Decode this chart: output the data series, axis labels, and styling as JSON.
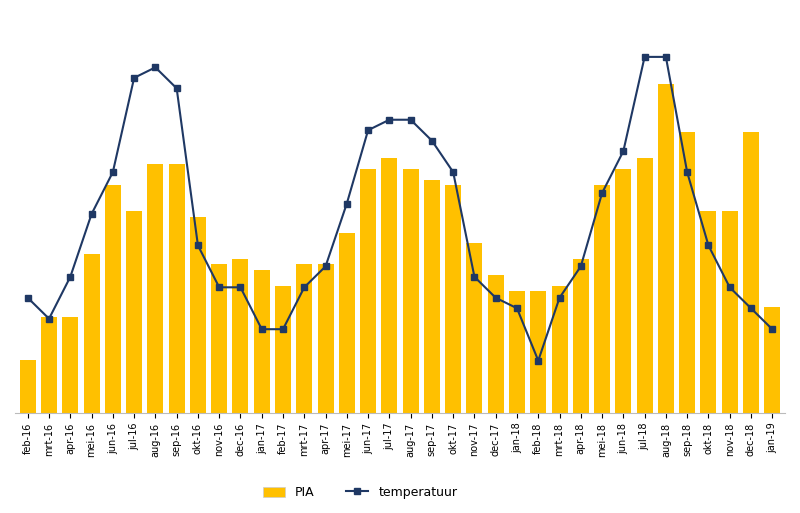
{
  "categories": [
    "feb-16",
    "mrt-16",
    "apr-16",
    "mei-16",
    "jun-16",
    "jul-16",
    "aug-16",
    "sep-16",
    "okt-16",
    "nov-16",
    "dec-16",
    "jan-17",
    "feb-17",
    "mrt-17",
    "apr-17",
    "mei-17",
    "jun-17",
    "jul-17",
    "aug-17",
    "sep-17",
    "okt-17",
    "nov-17",
    "dec-17",
    "jan-18",
    "feb-18",
    "mrt-18",
    "apr-18",
    "mei-18",
    "jun-18",
    "jul-18",
    "aug-18",
    "sep-18",
    "okt-18",
    "nov-18",
    "dec-18",
    "jan-19"
  ],
  "pia": [
    10,
    18,
    18,
    30,
    43,
    38,
    47,
    47,
    37,
    28,
    29,
    27,
    24,
    28,
    28,
    34,
    46,
    48,
    46,
    44,
    43,
    32,
    26,
    23,
    23,
    24,
    29,
    43,
    46,
    48,
    62,
    53,
    38,
    38,
    53,
    20
  ],
  "temp": [
    3,
    1,
    5,
    11,
    15,
    24,
    25,
    23,
    8,
    4,
    4,
    0,
    0,
    4,
    6,
    12,
    19,
    20,
    20,
    18,
    15,
    5,
    3,
    2,
    -3,
    3,
    6,
    13,
    17,
    26,
    26,
    15,
    8,
    4,
    2,
    0
  ],
  "bar_color": "#FFC000",
  "line_color": "#1F3864",
  "background_color": "#FFFFFF",
  "grid_color": "#D3D3D3",
  "legend_pia": "PIA",
  "legend_temp": "temperatuur",
  "ylim_bar": [
    0,
    75
  ],
  "ylim_temp": [
    -8,
    30
  ]
}
